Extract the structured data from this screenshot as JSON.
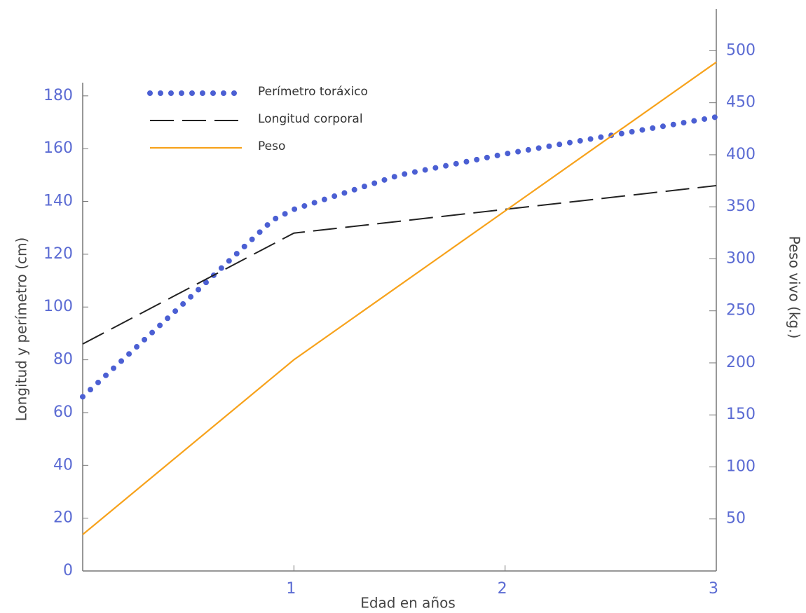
{
  "chart_data": {
    "type": "line",
    "xlabel": "Edad en años",
    "ylabel": "Longitud y perímetro (cm)",
    "y2label": "Peso vivo (kg.)",
    "xlim": [
      0,
      3
    ],
    "xticks": [
      1,
      2,
      3
    ],
    "ylim": [
      0,
      185
    ],
    "yticks": [
      0,
      20,
      40,
      60,
      80,
      100,
      120,
      140,
      160,
      180
    ],
    "y2lim": [
      0,
      540
    ],
    "y2ticks": [
      50,
      100,
      150,
      200,
      250,
      300,
      350,
      400,
      450,
      500
    ],
    "series": [
      {
        "name": "Perímetro toráxico",
        "color": "#4b5fd3",
        "style": "dotted",
        "axis": "y",
        "x": [
          0,
          0.5,
          0.9,
          1,
          1.5,
          2,
          2.5,
          3
        ],
        "values": [
          66,
          103,
          133,
          137,
          150,
          158,
          165,
          172
        ]
      },
      {
        "name": "Longitud corporal",
        "color": "#222222",
        "style": "dashed",
        "axis": "y",
        "x": [
          0,
          1,
          2,
          3
        ],
        "values": [
          86,
          128,
          137,
          146
        ]
      },
      {
        "name": "Peso",
        "color": "#f7a21b",
        "style": "solid",
        "axis": "y2",
        "x": [
          0,
          1,
          2,
          3
        ],
        "values": [
          35,
          203,
          346,
          489
        ]
      }
    ]
  }
}
